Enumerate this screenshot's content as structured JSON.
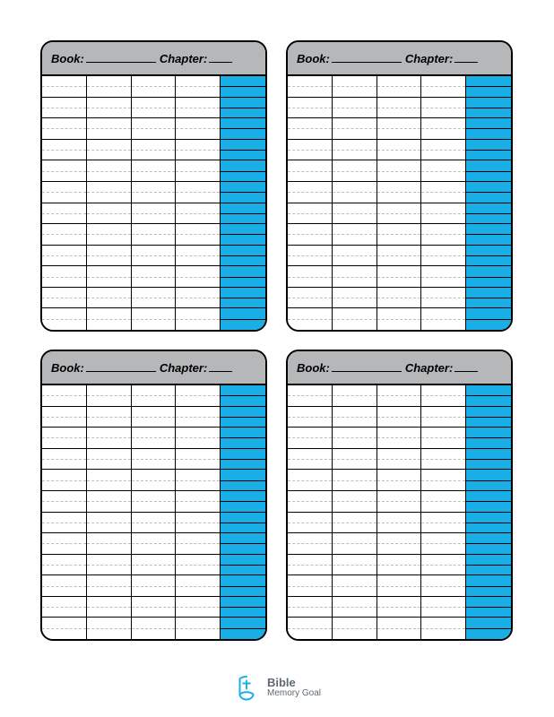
{
  "colors": {
    "header_bg": "#b6b7b9",
    "accent": "#19afe6",
    "border": "#000000",
    "page_bg": "#ffffff",
    "dashed": "#bdbdbd",
    "logo": "#19afe6",
    "logo_text": "#5f6a72"
  },
  "card_labels": {
    "book": "Book:",
    "chapter": "Chapter:"
  },
  "grid": {
    "rows": 12,
    "cols": 5,
    "accent_col_index": 4
  },
  "cards": 4,
  "logo": {
    "line1": "Bible",
    "line2": "Memory Goal"
  }
}
